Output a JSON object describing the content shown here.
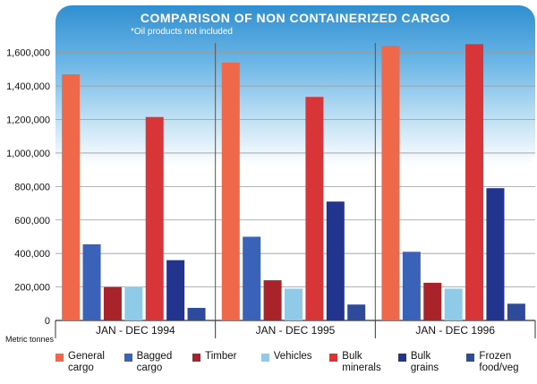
{
  "chart_data": {
    "type": "bar",
    "title": "COMPARISON OF NON CONTAINERIZED CARGO",
    "subtitle": "*Oil products not included",
    "ylabel": "Metric tonnes",
    "ylim": [
      0,
      1700000
    ],
    "yticks": [
      "0",
      "200,000",
      "400,000",
      "600,000",
      "800,000",
      "1,000,000",
      "1,200,000",
      "1,400,000",
      "1,600,000"
    ],
    "ytick_values": [
      0,
      200000,
      400000,
      600000,
      800000,
      1000000,
      1200000,
      1400000,
      1600000
    ],
    "grid": true,
    "legend_position": "bottom",
    "categories": [
      "JAN - DEC 1994",
      "JAN - DEC 1995",
      "JAN - DEC 1996"
    ],
    "series": [
      {
        "name": "General\ncargo",
        "color": "#f0684a",
        "values": [
          1470000,
          1540000,
          1640000
        ]
      },
      {
        "name": "Bagged\ncargo",
        "color": "#3a62b8",
        "values": [
          455000,
          500000,
          410000
        ]
      },
      {
        "name": "Timber",
        "color": "#a8242a",
        "values": [
          200000,
          240000,
          225000
        ]
      },
      {
        "name": "Vehicles",
        "color": "#8fcbe8",
        "values": [
          200000,
          190000,
          190000
        ]
      },
      {
        "name": "Bulk\nminerals",
        "color": "#d83538",
        "values": [
          1215000,
          1335000,
          1650000
        ]
      },
      {
        "name": "Bulk\ngrains",
        "color": "#22348e",
        "values": [
          360000,
          710000,
          790000
        ]
      },
      {
        "name": "Frozen\nfood/veg",
        "color": "#2e4a9a",
        "values": [
          75000,
          95000,
          100000
        ]
      }
    ]
  }
}
